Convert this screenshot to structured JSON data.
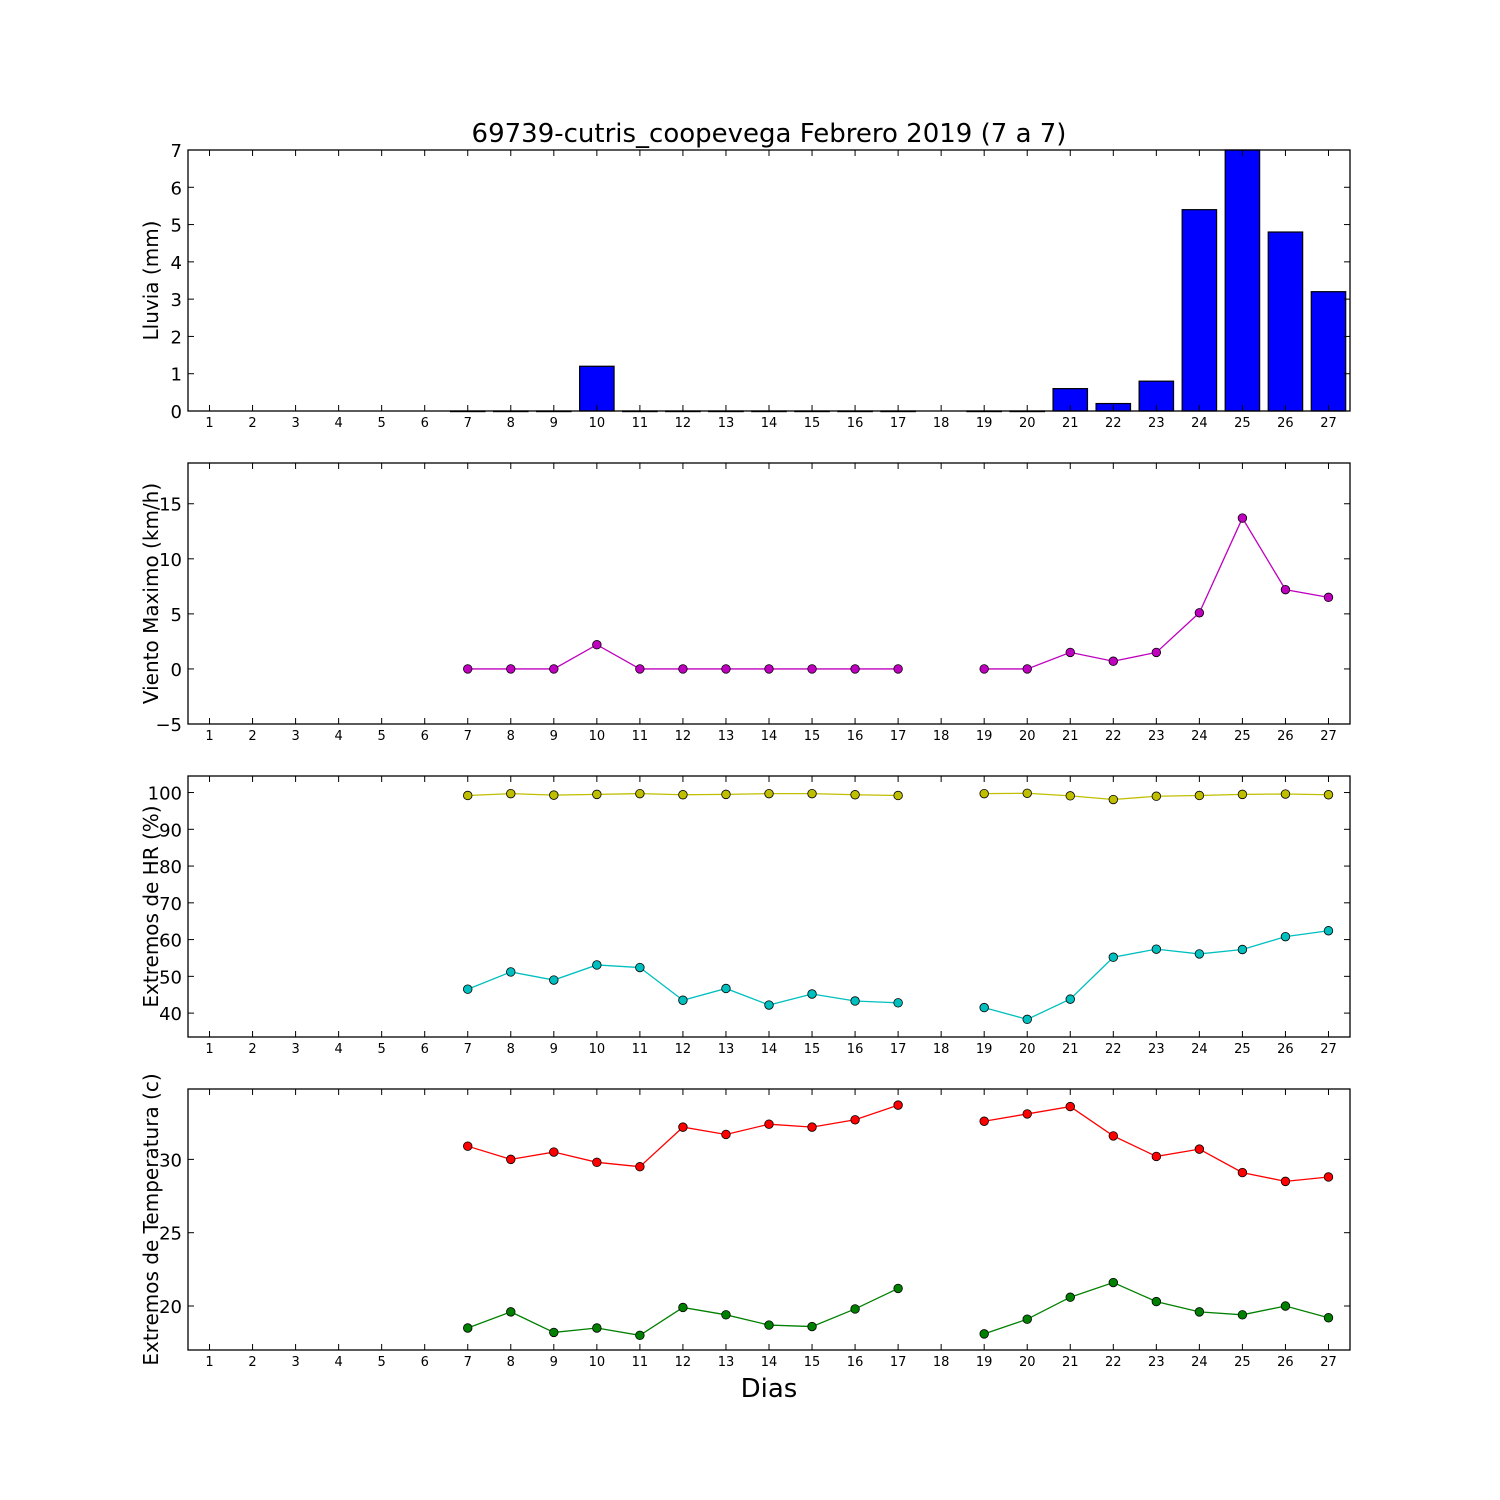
{
  "figure": {
    "title": "69739-cutris_coopevega Febrero 2019  (7 a 7)",
    "xlabel": "Dias"
  },
  "chart_data": [
    {
      "type": "bar",
      "ylabel": "Lluvia (mm)",
      "xlim": [
        0.5,
        27.5
      ],
      "ylim": [
        0,
        7
      ],
      "yticks": [
        0,
        1,
        2,
        3,
        4,
        5,
        6,
        7
      ],
      "xticks": [
        1,
        2,
        3,
        4,
        5,
        6,
        7,
        8,
        9,
        10,
        11,
        12,
        13,
        14,
        15,
        16,
        17,
        18,
        19,
        20,
        21,
        22,
        23,
        24,
        25,
        26,
        27
      ],
      "grid": false,
      "series": [
        {
          "color": "#0000ff",
          "x": [
            7,
            8,
            9,
            10,
            11,
            12,
            13,
            14,
            15,
            16,
            17,
            19,
            20,
            21,
            22,
            23,
            24,
            25,
            26,
            27
          ],
          "values": [
            0,
            0,
            0,
            1.2,
            0,
            0,
            0,
            0,
            0,
            0,
            0,
            0,
            0,
            0.6,
            0.2,
            0.8,
            5.4,
            7.0,
            4.8,
            3.2
          ]
        }
      ]
    },
    {
      "type": "line",
      "ylabel": "Viento Maximo (km/h)",
      "xlim": [
        0.5,
        27.5
      ],
      "ylim": [
        -5,
        18.7
      ],
      "yticks": [
        -5,
        0,
        5,
        10,
        15
      ],
      "ytick_labels": [
        "−5",
        "0",
        "5",
        "10",
        "15"
      ],
      "xticks": [
        1,
        2,
        3,
        4,
        5,
        6,
        7,
        8,
        9,
        10,
        11,
        12,
        13,
        14,
        15,
        16,
        17,
        18,
        19,
        20,
        21,
        22,
        23,
        24,
        25,
        26,
        27
      ],
      "grid": false,
      "series": [
        {
          "color": "#bf00bf",
          "x": [
            7,
            8,
            9,
            10,
            11,
            12,
            13,
            14,
            15,
            16,
            17,
            null,
            19,
            20,
            21,
            22,
            23,
            24,
            25,
            26,
            27
          ],
          "values": [
            0,
            0,
            0,
            2.2,
            0,
            0,
            0,
            0,
            0,
            0,
            0,
            null,
            0,
            0,
            1.5,
            0.7,
            1.5,
            5.1,
            13.7,
            7.2,
            6.5
          ]
        }
      ]
    },
    {
      "type": "line",
      "ylabel": "Extremos de HR (%)",
      "xlim": [
        0.5,
        27.5
      ],
      "ylim": [
        33.5,
        104.5
      ],
      "yticks": [
        40,
        50,
        60,
        70,
        80,
        90,
        100
      ],
      "xticks": [
        1,
        2,
        3,
        4,
        5,
        6,
        7,
        8,
        9,
        10,
        11,
        12,
        13,
        14,
        15,
        16,
        17,
        18,
        19,
        20,
        21,
        22,
        23,
        24,
        25,
        26,
        27
      ],
      "grid": false,
      "series": [
        {
          "color": "#bfbf00",
          "x": [
            7,
            8,
            9,
            10,
            11,
            12,
            13,
            14,
            15,
            16,
            17,
            null,
            19,
            20,
            21,
            22,
            23,
            24,
            25,
            26,
            27
          ],
          "values": [
            99.2,
            99.7,
            99.3,
            99.5,
            99.7,
            99.4,
            99.5,
            99.7,
            99.7,
            99.4,
            99.2,
            null,
            99.7,
            99.8,
            99.1,
            98.1,
            99.0,
            99.2,
            99.5,
            99.6,
            99.4
          ]
        },
        {
          "color": "#00bfbf",
          "x": [
            7,
            8,
            9,
            10,
            11,
            12,
            13,
            14,
            15,
            16,
            17,
            null,
            19,
            20,
            21,
            22,
            23,
            24,
            25,
            26,
            27
          ],
          "values": [
            46.5,
            51.2,
            49.0,
            53.1,
            52.4,
            43.5,
            46.7,
            42.2,
            45.2,
            43.3,
            42.8,
            null,
            41.5,
            38.3,
            43.8,
            55.2,
            57.4,
            56.1,
            57.3,
            60.8,
            62.4
          ]
        }
      ]
    },
    {
      "type": "line",
      "ylabel": "Extremos de Temperatura (c)",
      "xlim": [
        0.5,
        27.5
      ],
      "ylim": [
        17.0,
        34.8
      ],
      "yticks": [
        20,
        25,
        30
      ],
      "xticks": [
        1,
        2,
        3,
        4,
        5,
        6,
        7,
        8,
        9,
        10,
        11,
        12,
        13,
        14,
        15,
        16,
        17,
        18,
        19,
        20,
        21,
        22,
        23,
        24,
        25,
        26,
        27
      ],
      "grid": false,
      "series": [
        {
          "color": "#ff0000",
          "x": [
            7,
            8,
            9,
            10,
            11,
            12,
            13,
            14,
            15,
            16,
            17,
            null,
            19,
            20,
            21,
            22,
            23,
            24,
            25,
            26,
            27
          ],
          "values": [
            30.9,
            30.0,
            30.5,
            29.8,
            29.5,
            32.2,
            31.7,
            32.4,
            32.2,
            32.7,
            33.7,
            null,
            32.6,
            33.1,
            33.6,
            31.6,
            30.2,
            30.7,
            29.1,
            28.5,
            28.8
          ]
        },
        {
          "color": "#008000",
          "x": [
            7,
            8,
            9,
            10,
            11,
            12,
            13,
            14,
            15,
            16,
            17,
            null,
            19,
            20,
            21,
            22,
            23,
            24,
            25,
            26,
            27
          ],
          "values": [
            18.5,
            19.6,
            18.2,
            18.5,
            18.0,
            19.9,
            19.4,
            18.7,
            18.6,
            19.8,
            21.2,
            null,
            18.1,
            19.1,
            20.6,
            21.6,
            20.3,
            19.6,
            19.4,
            20.0,
            19.2
          ]
        }
      ]
    }
  ]
}
